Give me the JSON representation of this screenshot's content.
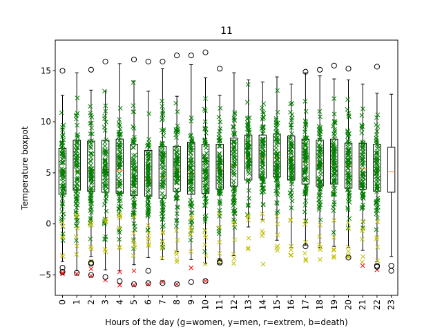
{
  "chart_data": {
    "type": "boxplot",
    "title": "11",
    "xlabel": "Hours of the day (g=women, y=men, r=extrem, b=death)",
    "ylabel": "Temperature boxpot",
    "ylim": [
      -7,
      18
    ],
    "yticks": [
      -5,
      0,
      5,
      10,
      15
    ],
    "ytick_labels": [
      "−5",
      "0",
      "5",
      "10",
      "15"
    ],
    "categories": [
      "0",
      "1",
      "2",
      "3",
      "4",
      "5",
      "6",
      "7",
      "8",
      "9",
      "10",
      "11",
      "12",
      "13",
      "14",
      "15",
      "16",
      "17",
      "18",
      "19",
      "20",
      "21",
      "22",
      "23"
    ],
    "boxes": [
      {
        "q1": 2.9,
        "median": 5.2,
        "q3": 7.4,
        "whisker_low": -3.7,
        "whisker_high": 12.6
      },
      {
        "q1": 3.3,
        "median": 5.1,
        "q3": 8.2,
        "whisker_low": -4.6,
        "whisker_high": 14.8
      },
      {
        "q1": 3.2,
        "median": 5.2,
        "q3": 8.1,
        "whisker_low": -3.2,
        "whisker_high": 13.1
      },
      {
        "q1": 3.1,
        "median": 5.3,
        "q3": 8.2,
        "whisker_low": -4.5,
        "whisker_high": 13.0
      },
      {
        "q1": 3.0,
        "median": 5.2,
        "q3": 8.3,
        "whisker_low": -4.6,
        "whisker_high": 15.7
      },
      {
        "q1": 2.8,
        "median": 5.3,
        "q3": 7.8,
        "whisker_low": -4.0,
        "whisker_high": 14.0
      },
      {
        "q1": 2.7,
        "median": 4.4,
        "q3": 7.2,
        "whisker_low": -3.3,
        "whisker_high": 13.0
      },
      {
        "q1": 2.5,
        "median": 4.6,
        "q3": 7.6,
        "whisker_low": -3.5,
        "whisker_high": 15.2
      },
      {
        "q1": 3.2,
        "median": 5.3,
        "q3": 7.6,
        "whisker_low": -2.7,
        "whisker_high": 12.5
      },
      {
        "q1": 2.9,
        "median": 5.0,
        "q3": 8.0,
        "whisker_low": -3.5,
        "whisker_high": 15.6
      },
      {
        "q1": 3.0,
        "median": 5.1,
        "q3": 7.8,
        "whisker_low": -3.9,
        "whisker_high": 14.3
      },
      {
        "q1": 3.4,
        "median": 5.3,
        "q3": 7.8,
        "whisker_low": -3.4,
        "whisker_high": 12.6
      },
      {
        "q1": 3.7,
        "median": 5.7,
        "q3": 8.4,
        "whisker_low": -3.1,
        "whisker_high": 14.8
      },
      {
        "q1": 4.3,
        "median": 6.4,
        "q3": 8.7,
        "whisker_low": -0.3,
        "whisker_high": 14.1
      },
      {
        "q1": 4.5,
        "median": 6.5,
        "q3": 8.7,
        "whisker_low": 0.4,
        "whisker_high": 13.9
      },
      {
        "q1": 4.6,
        "median": 6.5,
        "q3": 8.8,
        "whisker_low": -1.6,
        "whisker_high": 14.4
      },
      {
        "q1": 4.3,
        "median": 6.3,
        "q3": 8.6,
        "whisker_low": -2.3,
        "whisker_high": 13.7
      },
      {
        "q1": 3.9,
        "median": 6.0,
        "q3": 8.3,
        "whisker_low": -2.1,
        "whisker_high": 14.8
      },
      {
        "q1": 3.7,
        "median": 5.8,
        "q3": 8.2,
        "whisker_low": -2.3,
        "whisker_high": 14.5
      },
      {
        "q1": 3.9,
        "median": 5.8,
        "q3": 8.3,
        "whisker_low": -2.2,
        "whisker_high": 14.2
      },
      {
        "q1": 3.5,
        "median": 5.8,
        "q3": 7.9,
        "whisker_low": -2.3,
        "whisker_high": 14.1
      },
      {
        "q1": 3.4,
        "median": 5.4,
        "q3": 7.9,
        "whisker_low": -2.6,
        "whisker_high": 13.7
      },
      {
        "q1": 3.2,
        "median": 5.1,
        "q3": 7.8,
        "whisker_low": -3.7,
        "whisker_high": 12.8
      },
      {
        "q1": 3.1,
        "median": 5.1,
        "q3": 7.5,
        "whisker_low": -3.2,
        "whisker_high": 12.7
      }
    ],
    "outliers": [
      [
        -4.3,
        -4.7,
        15.0
      ],
      [
        -4.8
      ],
      [
        -3.8,
        -3.9,
        -5.0,
        15.1
      ],
      [
        -5.2,
        15.9
      ],
      [
        -5.6
      ],
      [
        -5.9,
        16.1
      ],
      [
        -4.6,
        -5.8,
        15.9
      ],
      [
        -5.8,
        15.9
      ],
      [
        -5.9,
        16.5
      ],
      [
        -5.7,
        16.5
      ],
      [
        -5.6,
        16.8
      ],
      [
        -3.7,
        -3.8,
        15.2
      ],
      [],
      [],
      [],
      [],
      [],
      [
        -2.2,
        14.9
      ],
      [
        15.1
      ],
      [
        15.5
      ],
      [
        -3.3,
        15.2
      ],
      [],
      [
        -4.1,
        -4.2,
        15.4
      ],
      [
        -4.1,
        -4.6
      ]
    ],
    "series": [
      {
        "name": "women",
        "marker": "x",
        "color": "#007f00"
      },
      {
        "name": "men",
        "marker": "x",
        "color": "#bfbf00"
      },
      {
        "name": "extrem",
        "marker": "x",
        "color": "#ff0000"
      },
      {
        "name": "death",
        "marker": "o",
        "color": "#000000"
      }
    ],
    "scatter_hours": 23,
    "men_range": [
      -4.0,
      1.0
    ],
    "extreme_points": [
      {
        "hour": 0,
        "y": -4.8
      },
      {
        "hour": 0,
        "y": -4.9
      },
      {
        "hour": 1,
        "y": -4.9
      },
      {
        "hour": 2,
        "y": -4.4
      },
      {
        "hour": 2,
        "y": -5.1
      },
      {
        "hour": 3,
        "y": -5.5
      },
      {
        "hour": 4,
        "y": -4.7
      },
      {
        "hour": 4,
        "y": -6.0
      },
      {
        "hour": 5,
        "y": -4.6
      },
      {
        "hour": 5,
        "y": -6.0
      },
      {
        "hour": 6,
        "y": -5.9
      },
      {
        "hour": 7,
        "y": -5.7
      },
      {
        "hour": 8,
        "y": -5.9
      },
      {
        "hour": 9,
        "y": -4.3
      },
      {
        "hour": 10,
        "y": -5.6
      },
      {
        "hour": 21,
        "y": -4.1
      },
      {
        "hour": 22,
        "y": -4.5
      }
    ],
    "colors": {
      "box_edge": "#000000",
      "median": "#ff7f0e",
      "women": "#007f00",
      "men": "#bfbf00",
      "extrem": "#ff0000",
      "death": "#000000"
    }
  }
}
